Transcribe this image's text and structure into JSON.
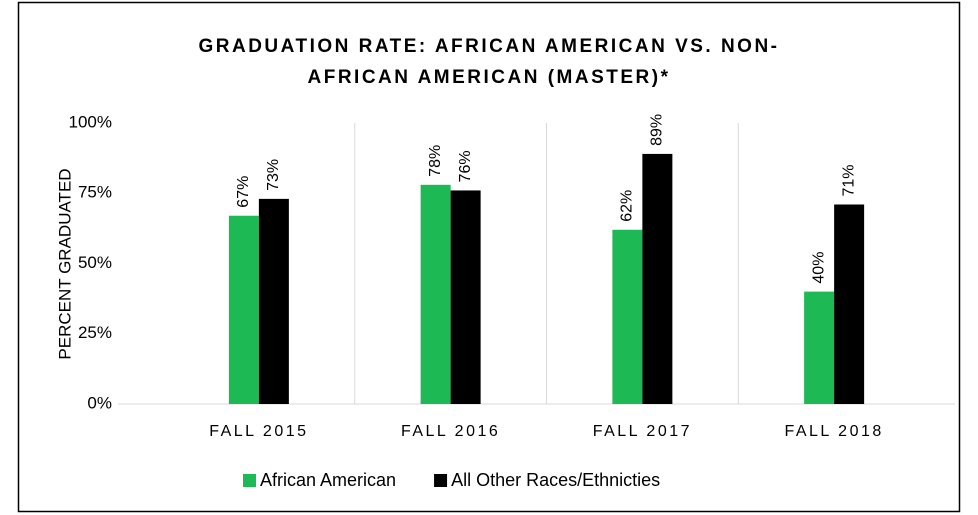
{
  "chart_data": {
    "type": "bar",
    "title": [
      "GRADUATION RATE: AFRICAN AMERICAN VS. NON-",
      "AFRICAN AMERICAN (MASTER)*"
    ],
    "y_label": "PERCENT GRADUATED",
    "categories": [
      "FALL 2015",
      "FALL 2016",
      "FALL 2017",
      "FALL 2018"
    ],
    "series": [
      {
        "name": "African American",
        "color": "#1db954",
        "values": [
          67,
          78,
          62,
          40
        ],
        "value_labels": [
          "67%",
          "78%",
          "62%",
          "40%"
        ]
      },
      {
        "name": "All Other Races/Ethnicties",
        "color": "#000000",
        "values": [
          73,
          76,
          89,
          71
        ],
        "value_labels": [
          "73%",
          "76%",
          "89%",
          "71%"
        ]
      }
    ],
    "ylim": [
      0,
      100
    ],
    "yticks": [
      {
        "value": 0,
        "label": "0%"
      },
      {
        "value": 25,
        "label": "25%"
      },
      {
        "value": 50,
        "label": "50%"
      },
      {
        "value": 75,
        "label": "75%"
      },
      {
        "value": 100,
        "label": "100%"
      }
    ],
    "grid": false,
    "legend": "bottom"
  }
}
